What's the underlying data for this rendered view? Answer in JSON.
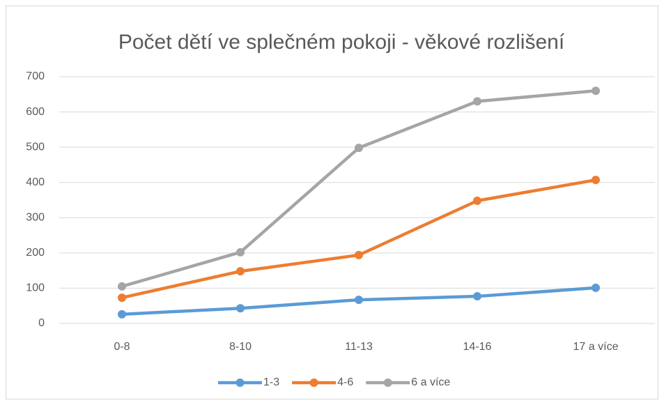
{
  "chart_data": {
    "type": "line",
    "title": "Počet dětí ve splečném pokoji - věkové rozlišení",
    "categories": [
      "0-8",
      "8-10",
      "11-13",
      "14-16",
      "17 a více"
    ],
    "series": [
      {
        "name": "1-3",
        "color": "#5b9bd5",
        "values": [
          26,
          43,
          67,
          77,
          101
        ]
      },
      {
        "name": "4-6",
        "color": "#ed7d31",
        "values": [
          73,
          148,
          194,
          348,
          407
        ]
      },
      {
        "name": "6 a více",
        "color": "#a5a5a5",
        "values": [
          105,
          202,
          498,
          630,
          660
        ]
      }
    ],
    "ylim": [
      0,
      700
    ],
    "yticks": [
      0,
      100,
      200,
      300,
      400,
      500,
      600,
      700
    ],
    "grid": true,
    "legend": "bottom"
  }
}
